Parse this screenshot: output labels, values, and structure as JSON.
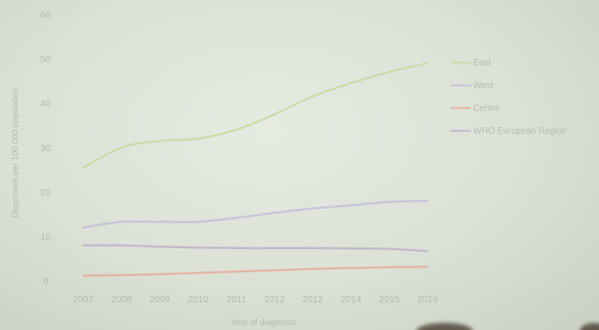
{
  "chart_data": {
    "type": "line",
    "title": "",
    "xlabel": "Year of diagnosis",
    "ylabel": "Diagnoses per 100 000 population",
    "x": [
      "2007",
      "2008",
      "2009",
      "2010",
      "2011",
      "2012",
      "2013",
      "2014",
      "2015",
      "2016"
    ],
    "yticks": [
      "0",
      "10",
      "20",
      "30",
      "40",
      "50",
      "60"
    ],
    "ylim": [
      0,
      60
    ],
    "grid": false,
    "legend_position": "right",
    "series": [
      {
        "name": "East",
        "color": "#cbdcaa",
        "values": [
          25.5,
          30,
          31.5,
          32,
          34,
          37.5,
          41.5,
          44.5,
          47,
          49
        ]
      },
      {
        "name": "West",
        "color": "#c9c4d6",
        "values": [
          12,
          13.3,
          13.3,
          13.3,
          14.2,
          15.3,
          16.3,
          17,
          17.8,
          18
        ]
      },
      {
        "name": "Centre",
        "color": "#e3b6a4",
        "values": [
          1.2,
          1.3,
          1.5,
          1.8,
          2.1,
          2.4,
          2.7,
          2.9,
          3.1,
          3.2
        ]
      },
      {
        "name": "WHO European Region",
        "color": "#c4b8cc",
        "values": [
          8,
          8,
          7.7,
          7.5,
          7.4,
          7.4,
          7.4,
          7.3,
          7.2,
          6.7
        ]
      }
    ]
  }
}
